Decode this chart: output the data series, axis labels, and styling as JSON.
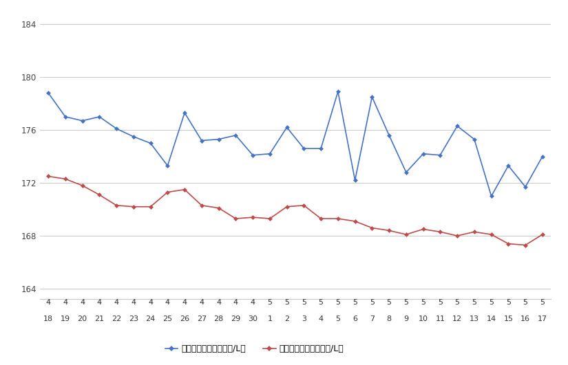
{
  "x_labels_row1": [
    "4",
    "4",
    "4",
    "4",
    "4",
    "4",
    "4",
    "4",
    "4",
    "4",
    "4",
    "4",
    "4",
    "5",
    "5",
    "5",
    "5",
    "5",
    "5",
    "5",
    "5",
    "5",
    "5",
    "5",
    "5",
    "5",
    "5",
    "5",
    "5",
    "5"
  ],
  "x_labels_row2": [
    "18",
    "19",
    "20",
    "21",
    "22",
    "23",
    "24",
    "25",
    "26",
    "27",
    "28",
    "29",
    "30",
    "1",
    "2",
    "3",
    "4",
    "5",
    "6",
    "7",
    "8",
    "9",
    "10",
    "11",
    "12",
    "13",
    "14",
    "15",
    "16",
    "17"
  ],
  "blue_vals": [
    178.8,
    177.0,
    176.7,
    177.0,
    176.1,
    175.5,
    175.0,
    173.3,
    177.3,
    175.2,
    175.3,
    175.6,
    174.1,
    174.2,
    176.2,
    174.6,
    174.6,
    178.9,
    172.2,
    178.5,
    175.6,
    172.8,
    174.2,
    174.1,
    176.3,
    175.3,
    171.0,
    173.3,
    171.7,
    174.0
  ],
  "red_vals": [
    172.5,
    172.3,
    171.8,
    171.1,
    170.3,
    170.2,
    170.2,
    171.3,
    171.5,
    170.3,
    170.1,
    169.3,
    169.4,
    169.3,
    170.2,
    170.3,
    169.3,
    169.3,
    169.1,
    168.6,
    168.4,
    168.1,
    168.5,
    168.3,
    168.0,
    168.3,
    168.1,
    167.4,
    167.3,
    168.1
  ],
  "blue_label": "ハイオク看板価格（円/L）",
  "red_label": "ハイオク実売価格（円/L）",
  "ylim": [
    164,
    185
  ],
  "yticks": [
    164,
    168,
    172,
    176,
    180,
    184
  ],
  "blue_color": "#4472C4",
  "red_color": "#BE4B48",
  "bg_color": "#FFFFFF",
  "grid_color": "#C8C8C8",
  "marker_size": 3.5,
  "linewidth": 1.2
}
